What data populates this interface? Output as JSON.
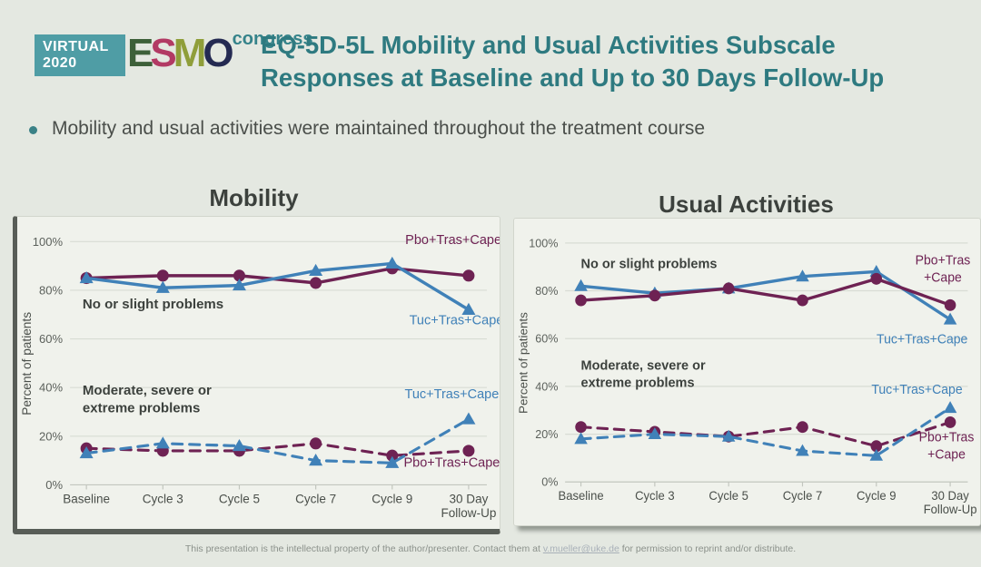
{
  "logo": {
    "virtual_line1": "VIRTUAL",
    "virtual_line2": "2020",
    "letters": [
      {
        "ch": "E",
        "color": "#3d6039"
      },
      {
        "ch": "S",
        "color": "#b23a64"
      },
      {
        "ch": "M",
        "color": "#8f9e3a"
      },
      {
        "ch": "O",
        "color": "#242a52"
      }
    ],
    "congress": "congress"
  },
  "header": {
    "title_line1": "EQ-5D-5L Mobility and Usual Activities Subscale",
    "title_line2": "Responses at Baseline and Up to 30 Days Follow-Up"
  },
  "bullet": {
    "text": "Mobility and usual activities were maintained throughout the treatment course"
  },
  "colors": {
    "accent_teal": "#2e7a80",
    "series_pbo": "#6e2253",
    "series_tuc": "#4081b8",
    "page_background": "#e4e8e1",
    "panel_background": "#f0f2ec"
  },
  "footer": {
    "prefix": "This presentation is the intellectual property of the author/presenter. Contact them at ",
    "link": "v.mueller@uke.de",
    "suffix": " for permission to reprint and/or distribute."
  },
  "chart_data": [
    {
      "type": "line",
      "title": "Mobility",
      "ylabel": "Percent of patients",
      "categories": [
        "Baseline",
        "Cycle 3",
        "Cycle 5",
        "Cycle 7",
        "Cycle 9",
        "30 Day\nFollow-Up"
      ],
      "yticks": [
        0,
        20,
        40,
        60,
        80,
        100
      ],
      "ylim": [
        0,
        104
      ],
      "grid": true,
      "series": [
        {
          "name": "Pbo+Tras+Cape - No or slight problems",
          "color": "#6e2253",
          "style": "solid",
          "marker": "circle",
          "values": [
            85,
            86,
            86,
            83,
            89,
            86
          ]
        },
        {
          "name": "Tuc+Tras+Cape - No or slight problems",
          "color": "#4081b8",
          "style": "solid",
          "marker": "triangle",
          "values": [
            85,
            81,
            82,
            88,
            91,
            72
          ]
        },
        {
          "name": "Pbo+Tras+Cape - Moderate, severe or extreme problems",
          "color": "#6e2253",
          "style": "dashed",
          "marker": "circle",
          "values": [
            15,
            14,
            14,
            17,
            12,
            14
          ]
        },
        {
          "name": "Tuc+Tras+Cape - Moderate, severe or extreme problems",
          "color": "#4081b8",
          "style": "dashed",
          "marker": "triangle",
          "values": [
            13,
            17,
            16,
            10,
            9,
            27
          ]
        }
      ],
      "annotations": [
        {
          "lines": [
            "Pbo+Tras+Cape"
          ],
          "x": 4.8,
          "y": 99,
          "color": "#6e2253",
          "bold": false,
          "align": "middle"
        },
        {
          "lines": [
            "No or slight problems"
          ],
          "x": -0.05,
          "y": 72.5,
          "color": "#3c413d",
          "bold": true,
          "align": "start"
        },
        {
          "lines": [
            "Tuc+Tras+Cape"
          ],
          "x": 4.84,
          "y": 66,
          "color": "#4081b8",
          "bold": false,
          "align": "middle"
        },
        {
          "lines": [
            "Moderate, severe or",
            "extreme problems"
          ],
          "x": -0.05,
          "y": 37,
          "color": "#3c413d",
          "bold": true,
          "align": "start"
        },
        {
          "lines": [
            "Tuc+Tras+Cape"
          ],
          "x": 4.78,
          "y": 35.5,
          "color": "#4081b8",
          "bold": false,
          "align": "middle"
        },
        {
          "lines": [
            "Pbo+Tras+Cape"
          ],
          "x": 4.78,
          "y": 7.5,
          "color": "#6e2253",
          "bold": false,
          "align": "middle"
        }
      ]
    },
    {
      "type": "line",
      "title": "Usual Activities",
      "ylabel": "Percent of patients",
      "categories": [
        "Baseline",
        "Cycle 3",
        "Cycle 5",
        "Cycle 7",
        "Cycle 9",
        "30 Day\nFollow-Up"
      ],
      "yticks": [
        0,
        20,
        40,
        60,
        80,
        100
      ],
      "ylim": [
        0,
        104
      ],
      "grid": true,
      "series": [
        {
          "name": "Tuc+Tras+Cape - No or slight problems",
          "color": "#4081b8",
          "style": "solid",
          "marker": "triangle",
          "values": [
            82,
            79,
            81,
            86,
            88,
            68
          ]
        },
        {
          "name": "Pbo+Tras+Cape - No or slight problems",
          "color": "#6e2253",
          "style": "solid",
          "marker": "circle",
          "values": [
            76,
            78,
            81,
            76,
            85,
            74
          ]
        },
        {
          "name": "Pbo+Tras+Cape - Moderate, severe or extreme problems",
          "color": "#6e2253",
          "style": "dashed",
          "marker": "circle",
          "values": [
            23,
            21,
            19,
            23,
            15,
            25
          ]
        },
        {
          "name": "Tuc+Tras+Cape - Moderate, severe or extreme problems",
          "color": "#4081b8",
          "style": "dashed",
          "marker": "triangle",
          "values": [
            18,
            20,
            19,
            13,
            11,
            31
          ]
        }
      ],
      "annotations": [
        {
          "lines": [
            "No or slight problems"
          ],
          "x": 0.0,
          "y": 89.5,
          "color": "#3c413d",
          "bold": true,
          "align": "start"
        },
        {
          "lines": [
            "Pbo+Tras",
            "+Cape"
          ],
          "x": 4.9,
          "y": 91,
          "color": "#6e2253",
          "bold": false,
          "align": "middle"
        },
        {
          "lines": [
            "Tuc+Tras+Cape"
          ],
          "x": 4.62,
          "y": 58,
          "color": "#4081b8",
          "bold": false,
          "align": "middle"
        },
        {
          "lines": [
            "Moderate, severe or",
            "extreme problems"
          ],
          "x": 0.0,
          "y": 47,
          "color": "#3c413d",
          "bold": true,
          "align": "start"
        },
        {
          "lines": [
            "Tuc+Tras+Cape"
          ],
          "x": 4.55,
          "y": 37,
          "color": "#4081b8",
          "bold": false,
          "align": "middle"
        },
        {
          "lines": [
            "Pbo+Tras",
            "+Cape"
          ],
          "x": 4.95,
          "y": 17,
          "color": "#6e2253",
          "bold": false,
          "align": "middle"
        }
      ]
    }
  ]
}
